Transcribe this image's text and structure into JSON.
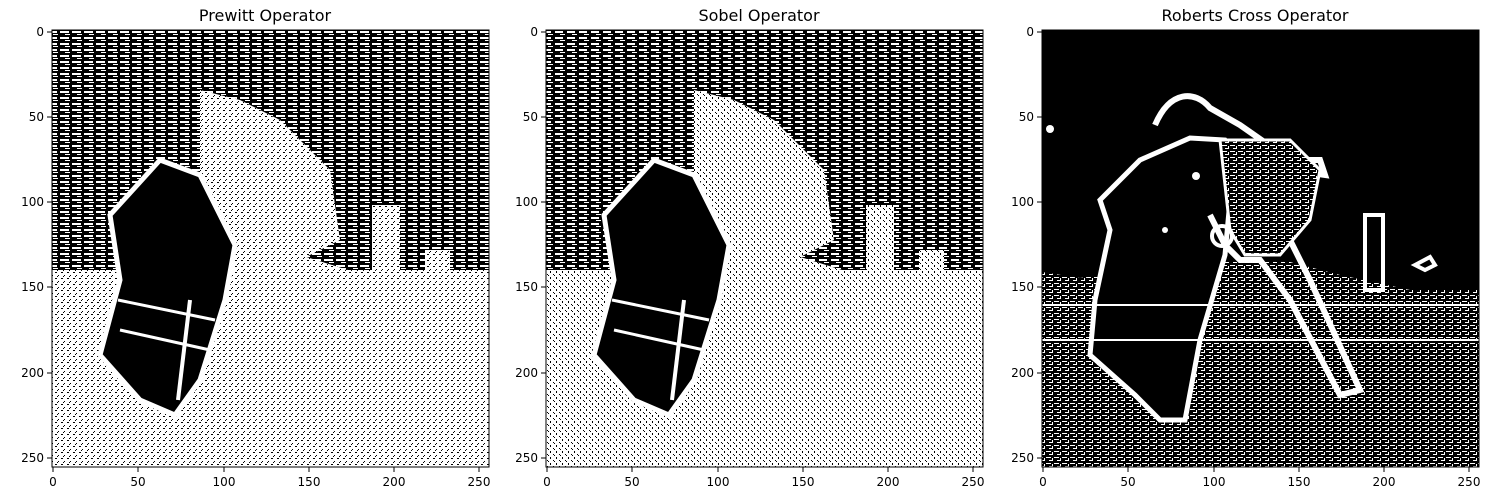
{
  "figure": {
    "panels": [
      {
        "title": "Prewitt Operator",
        "image": "prewitt-edge-map"
      },
      {
        "title": "Sobel Operator",
        "image": "sobel-edge-map"
      },
      {
        "title": "Roberts Cross Operator",
        "image": "roberts-cross-edge-map"
      }
    ],
    "axis": {
      "ticks": [
        "0",
        "50",
        "100",
        "150",
        "200",
        "250"
      ],
      "range": [
        0,
        255
      ]
    },
    "colors": {
      "edge": "#ffffff",
      "background": "#000000"
    }
  }
}
